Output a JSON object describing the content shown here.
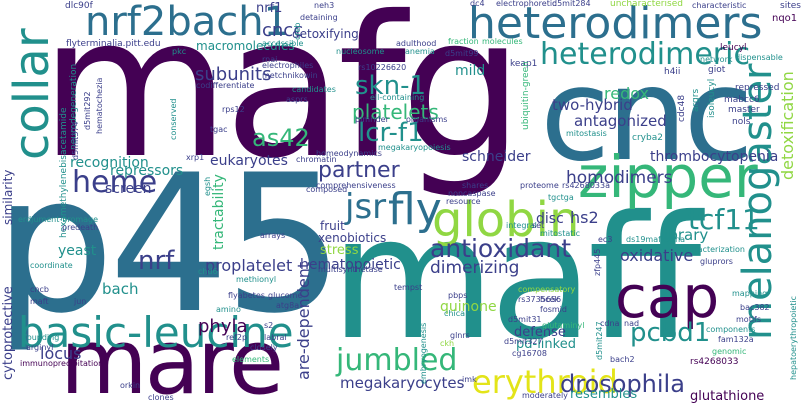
{
  "palette": {
    "dark_purple": "#440154",
    "indigo": "#3b3f8a",
    "blue": "#2c6f8e",
    "teal": "#21908c",
    "green": "#35b779",
    "lime": "#90d743",
    "yellow": "#e3e419"
  },
  "words": [
    {
      "text": "mafg",
      "color": "dark_purple"
    },
    {
      "text": "p45",
      "color": "blue"
    },
    {
      "text": "maff",
      "color": "teal"
    },
    {
      "text": "cnc",
      "color": "blue"
    },
    {
      "text": "mare",
      "color": "dark_purple"
    },
    {
      "text": "heterodimers",
      "color": "blue"
    },
    {
      "text": "nrf2bach1",
      "color": "blue"
    },
    {
      "text": "zipper",
      "color": "green"
    },
    {
      "text": "globin",
      "color": "lime"
    },
    {
      "text": "basic-leucine",
      "color": "teal"
    },
    {
      "text": "cap",
      "color": "dark_purple"
    },
    {
      "text": "collar",
      "color": "teal"
    },
    {
      "text": "heterodimeric",
      "color": "teal"
    },
    {
      "text": "melanogaster",
      "color": "teal"
    },
    {
      "text": "fly",
      "color": "blue"
    },
    {
      "text": "jsr",
      "color": "blue"
    },
    {
      "text": "heme",
      "color": "indigo"
    },
    {
      "text": "erythroid",
      "color": "yellow"
    },
    {
      "text": "jumbled",
      "color": "green"
    },
    {
      "text": "drosophila",
      "color": "indigo"
    },
    {
      "text": "antioxidant",
      "color": "indigo"
    },
    {
      "text": "lcr-f1",
      "color": "teal"
    },
    {
      "text": "skn-1",
      "color": "teal"
    },
    {
      "text": "tcf11",
      "color": "teal"
    },
    {
      "text": "pcbd1",
      "color": "teal"
    },
    {
      "text": "nrf",
      "color": "indigo"
    },
    {
      "text": "partner",
      "color": "indigo"
    },
    {
      "text": "as42",
      "color": "green"
    },
    {
      "text": "platelets",
      "color": "green"
    },
    {
      "text": "cncc",
      "color": "indigo"
    },
    {
      "text": "subunits",
      "color": "indigo"
    },
    {
      "text": "nrf1",
      "color": "indigo"
    },
    {
      "text": "recognition",
      "color": "teal"
    },
    {
      "text": "repressors",
      "color": "teal"
    },
    {
      "text": "eukaryotes",
      "color": "indigo"
    },
    {
      "text": "screen",
      "color": "indigo"
    },
    {
      "text": "redox",
      "color": "green"
    },
    {
      "text": "two-hybrid",
      "color": "indigo"
    },
    {
      "text": "antagonized",
      "color": "indigo"
    },
    {
      "text": "homodimers",
      "color": "indigo"
    },
    {
      "text": "hs2",
      "color": "indigo"
    },
    {
      "text": "thrombocytopenia",
      "color": "indigo"
    },
    {
      "text": "detoxification",
      "color": "lime"
    },
    {
      "text": "library",
      "color": "teal"
    },
    {
      "text": "oxidative",
      "color": "indigo"
    },
    {
      "text": "dimerizing",
      "color": "indigo"
    },
    {
      "text": "hematopoietic",
      "color": "indigo"
    },
    {
      "text": "proplatelet",
      "color": "indigo"
    },
    {
      "text": "xenobiotics",
      "color": "indigo"
    },
    {
      "text": "fruit",
      "color": "indigo"
    },
    {
      "text": "stress",
      "color": "lime"
    },
    {
      "text": "tractability",
      "color": "green"
    },
    {
      "text": "are-dependent",
      "color": "indigo"
    },
    {
      "text": "bach",
      "color": "teal"
    },
    {
      "text": "phyla",
      "color": "dark_purple"
    },
    {
      "text": "yeast",
      "color": "teal"
    },
    {
      "text": "locus",
      "color": "indigo"
    },
    {
      "text": "quinone",
      "color": "lime"
    },
    {
      "text": "defense",
      "color": "indigo"
    },
    {
      "text": "pd-linked",
      "color": "teal"
    },
    {
      "text": "megakaryocytes",
      "color": "indigo"
    },
    {
      "text": "resembles",
      "color": "teal"
    },
    {
      "text": "glutathione",
      "color": "dark_purple"
    },
    {
      "text": "mild",
      "color": "teal"
    },
    {
      "text": "schneider",
      "color": "indigo"
    },
    {
      "text": "detoxifying",
      "color": "indigo"
    },
    {
      "text": "macromolecules",
      "color": "teal"
    },
    {
      "text": "disc",
      "color": "indigo"
    },
    {
      "text": "cytoprotective",
      "color": "indigo"
    },
    {
      "text": "similarity",
      "color": "indigo"
    },
    {
      "text": "hexamethylenebisacetamide",
      "color": "teal"
    },
    {
      "text": "neurodegeneration",
      "color": "teal"
    },
    {
      "text": "flyterminalia.pitt.edu",
      "color": "indigo"
    },
    {
      "text": "dlc90f",
      "color": "indigo"
    },
    {
      "text": "uncharacterised",
      "color": "lime"
    },
    {
      "text": "electrophoretic",
      "color": "indigo"
    },
    {
      "text": "d5mit284",
      "color": "indigo"
    },
    {
      "text": "dc4",
      "color": "indigo"
    },
    {
      "text": "characteristic",
      "color": "indigo"
    },
    {
      "text": "nqo1",
      "color": "dark_purple"
    },
    {
      "text": "sites",
      "color": "indigo"
    },
    {
      "text": "leucyl",
      "color": "dark_purple"
    },
    {
      "text": "dispensable",
      "color": "teal"
    },
    {
      "text": "network",
      "color": "teal"
    },
    {
      "text": "giot",
      "color": "indigo"
    },
    {
      "text": "h4ii",
      "color": "indigo"
    },
    {
      "text": "keap1",
      "color": "indigo"
    },
    {
      "text": "fraction",
      "color": "green"
    },
    {
      "text": "molecules",
      "color": "green"
    },
    {
      "text": "adulthood",
      "color": "indigo"
    },
    {
      "text": "anemia",
      "color": "teal"
    },
    {
      "text": "d5mit99",
      "color": "indigo"
    },
    {
      "text": "rs10226620",
      "color": "indigo"
    },
    {
      "text": "nucleosome",
      "color": "teal"
    },
    {
      "text": "rnai",
      "color": "indigo"
    },
    {
      "text": "metchnikowin",
      "color": "indigo"
    },
    {
      "text": "codifferentiate",
      "color": "indigo"
    },
    {
      "text": "candidates",
      "color": "teal"
    },
    {
      "text": "asprs",
      "color": "indigo"
    },
    {
      "text": "ell-containing",
      "color": "teal"
    },
    {
      "text": "pimrider",
      "color": "indigo"
    },
    {
      "text": "organisms",
      "color": "indigo"
    },
    {
      "text": "megakaryopoiesis",
      "color": "teal"
    },
    {
      "text": "ubiquitin-green",
      "color": "green"
    },
    {
      "text": "mitostasis",
      "color": "teal"
    },
    {
      "text": "cryba2",
      "color": "teal"
    },
    {
      "text": "mabcc6",
      "color": "indigo"
    },
    {
      "text": "master",
      "color": "indigo"
    },
    {
      "text": "nols",
      "color": "indigo"
    },
    {
      "text": "repressed",
      "color": "indigo"
    },
    {
      "text": "isoleucyl",
      "color": "teal"
    },
    {
      "text": "argrs",
      "color": "teal"
    },
    {
      "text": "cdc48",
      "color": "indigo"
    },
    {
      "text": "proteome",
      "color": "indigo"
    },
    {
      "text": "rs4268033a",
      "color": "indigo"
    },
    {
      "text": "tgctga",
      "color": "teal"
    },
    {
      "text": "mitostatic",
      "color": "teal"
    },
    {
      "text": "shares",
      "color": "indigo"
    },
    {
      "text": "noncaspase",
      "color": "indigo"
    },
    {
      "text": "resource",
      "color": "indigo"
    },
    {
      "text": "homeodynamics",
      "color": "indigo"
    },
    {
      "text": "chromatin",
      "color": "indigo"
    },
    {
      "text": "comprehensiveness",
      "color": "indigo"
    },
    {
      "text": "composed",
      "color": "indigo"
    },
    {
      "text": "multisynthetase",
      "color": "indigo"
    },
    {
      "text": "integral",
      "color": "teal"
    },
    {
      "text": "set",
      "color": "indigo"
    },
    {
      "text": "ec3",
      "color": "indigo"
    },
    {
      "text": "ds19mafksirna",
      "color": "teal"
    },
    {
      "text": "characterization",
      "color": "teal"
    },
    {
      "text": "gluprors",
      "color": "indigo"
    },
    {
      "text": "mapping",
      "color": "teal"
    },
    {
      "text": "bac382",
      "color": "indigo"
    },
    {
      "text": "motifs",
      "color": "indigo"
    },
    {
      "text": "components",
      "color": "teal"
    },
    {
      "text": "fam132a",
      "color": "indigo"
    },
    {
      "text": "genomic",
      "color": "green"
    },
    {
      "text": "rs4268033",
      "color": "dark_purple"
    },
    {
      "text": "hepatoerythropoietic",
      "color": "teal"
    },
    {
      "text": "zfp445",
      "color": "indigo"
    },
    {
      "text": "compensatory",
      "color": "lime"
    },
    {
      "text": "rs3735656",
      "color": "indigo"
    },
    {
      "text": "fosmid",
      "color": "indigo"
    },
    {
      "text": "d5mit31",
      "color": "indigo"
    },
    {
      "text": "cdna",
      "color": "indigo"
    },
    {
      "text": "nad",
      "color": "indigo"
    },
    {
      "text": "glutaminyl",
      "color": "green"
    },
    {
      "text": "cg16708",
      "color": "indigo"
    },
    {
      "text": "d5mit247",
      "color": "teal"
    },
    {
      "text": "d5mit327",
      "color": "indigo"
    },
    {
      "text": "bach2",
      "color": "indigo"
    },
    {
      "text": "moderately",
      "color": "indigo"
    },
    {
      "text": "imk",
      "color": "indigo"
    },
    {
      "text": "ckh",
      "color": "lime"
    },
    {
      "text": "embryogenesis",
      "color": "teal"
    },
    {
      "text": "glnrs",
      "color": "indigo"
    },
    {
      "text": "pbps",
      "color": "indigo"
    },
    {
      "text": "chica",
      "color": "teal"
    },
    {
      "text": "hcek",
      "color": "indigo"
    },
    {
      "text": "tempst",
      "color": "indigo"
    },
    {
      "text": "s2",
      "color": "indigo"
    },
    {
      "text": "labral",
      "color": "indigo"
    },
    {
      "text": "closely",
      "color": "indigo"
    },
    {
      "text": "elements",
      "color": "green"
    },
    {
      "text": "ref2p",
      "color": "indigo"
    },
    {
      "text": "orkin",
      "color": "indigo"
    },
    {
      "text": "clones",
      "color": "indigo"
    },
    {
      "text": "immunoprecipitation",
      "color": "dark_purple"
    },
    {
      "text": "founding",
      "color": "teal"
    },
    {
      "text": "arginyl",
      "color": "indigo"
    },
    {
      "text": "maft",
      "color": "indigo"
    },
    {
      "text": "jun",
      "color": "indigo"
    },
    {
      "text": "cncb",
      "color": "indigo"
    },
    {
      "text": "coordinate",
      "color": "teal"
    },
    {
      "text": "erdjument-bromage",
      "color": "teal"
    },
    {
      "text": "predeath",
      "color": "indigo"
    },
    {
      "text": "xrp1",
      "color": "indigo"
    },
    {
      "text": "egsh",
      "color": "teal"
    },
    {
      "text": "chd6",
      "color": "teal"
    },
    {
      "text": "methionyl",
      "color": "teal"
    },
    {
      "text": "flyabetes",
      "color": "indigo"
    },
    {
      "text": "glucome",
      "color": "indigo"
    },
    {
      "text": "atg8a",
      "color": "indigo"
    },
    {
      "text": "amino",
      "color": "teal"
    },
    {
      "text": "arrays",
      "color": "indigo"
    },
    {
      "text": "pkc",
      "color": "teal"
    },
    {
      "text": "conserved",
      "color": "teal"
    },
    {
      "text": "rps12",
      "color": "indigo"
    },
    {
      "text": "tgac",
      "color": "indigo"
    },
    {
      "text": "d5mit292",
      "color": "indigo"
    },
    {
      "text": "hematochezia",
      "color": "indigo"
    },
    {
      "text": "d5mit374",
      "color": "indigo"
    },
    {
      "text": "electrophiles",
      "color": "indigo"
    },
    {
      "text": "accessible",
      "color": "teal"
    },
    {
      "text": "detaining",
      "color": "indigo"
    },
    {
      "text": "creb",
      "color": "teal"
    },
    {
      "text": "neh3",
      "color": "indigo"
    }
  ]
}
